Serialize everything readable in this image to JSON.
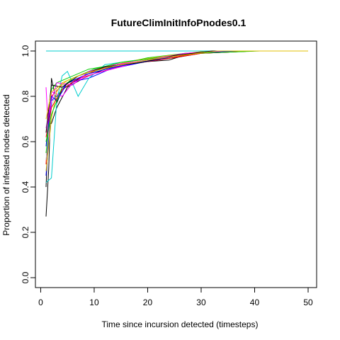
{
  "chart_data": {
    "type": "line",
    "title": "FutureClimInitInfoPnodes0.1",
    "xlabel": "Time since incursion detected (timesteps)",
    "ylabel": "Proportion of infested nodes detected",
    "xlim": [
      0,
      50
    ],
    "ylim": [
      0,
      1
    ],
    "x_ticks": [
      0,
      10,
      20,
      30,
      40,
      50
    ],
    "y_ticks": [
      0.0,
      0.2,
      0.4,
      0.6,
      0.8,
      1.0
    ],
    "y_tick_labels": [
      "0.0",
      "0.2",
      "0.4",
      "0.6",
      "0.8",
      "1.0"
    ],
    "grid": false,
    "legend": "none",
    "series": [
      {
        "color": "#000000",
        "values": [
          [
            1,
            0.27
          ],
          [
            1.5,
            0.48
          ],
          [
            2,
            0.88
          ],
          [
            3,
            0.77
          ],
          [
            4,
            0.83
          ],
          [
            6,
            0.86
          ],
          [
            8,
            0.89
          ],
          [
            10,
            0.91
          ],
          [
            15,
            0.94
          ],
          [
            20,
            0.96
          ],
          [
            25,
            0.97
          ],
          [
            30,
            0.99
          ],
          [
            35,
            0.995
          ],
          [
            40,
            1.0
          ],
          [
            50,
            1.0
          ]
        ]
      },
      {
        "color": "#000000",
        "values": [
          [
            1,
            0.4
          ],
          [
            1.5,
            0.68
          ],
          [
            2,
            0.68
          ],
          [
            3,
            0.75
          ],
          [
            5,
            0.84
          ],
          [
            8,
            0.88
          ],
          [
            12,
            0.92
          ],
          [
            18,
            0.95
          ],
          [
            24,
            0.96
          ],
          [
            28,
            0.99
          ],
          [
            34,
            1.0
          ],
          [
            50,
            1.0
          ]
        ]
      },
      {
        "color": "#ff0000",
        "values": [
          [
            1,
            0.5
          ],
          [
            1.5,
            0.72
          ],
          [
            2,
            0.8
          ],
          [
            4,
            0.85
          ],
          [
            6,
            0.87
          ],
          [
            10,
            0.9
          ],
          [
            16,
            0.94
          ],
          [
            22,
            0.96
          ],
          [
            30,
            0.99
          ],
          [
            40,
            1.0
          ],
          [
            50,
            1.0
          ]
        ]
      },
      {
        "color": "#00cd00",
        "values": [
          [
            1,
            0.55
          ],
          [
            1.5,
            0.66
          ],
          [
            2,
            0.83
          ],
          [
            3,
            0.86
          ],
          [
            5,
            0.88
          ],
          [
            9,
            0.92
          ],
          [
            14,
            0.94
          ],
          [
            20,
            0.97
          ],
          [
            27,
            0.99
          ],
          [
            35,
            1.0
          ],
          [
            50,
            1.0
          ]
        ]
      },
      {
        "color": "#0000ff",
        "values": [
          [
            1,
            0.45
          ],
          [
            2,
            0.78
          ],
          [
            3,
            0.8
          ],
          [
            5,
            0.86
          ],
          [
            9,
            0.88
          ],
          [
            13,
            0.92
          ],
          [
            19,
            0.95
          ],
          [
            26,
            0.98
          ],
          [
            33,
            1.0
          ],
          [
            50,
            1.0
          ]
        ]
      },
      {
        "color": "#00cdcd",
        "values": [
          [
            1,
            0.42
          ],
          [
            2,
            0.44
          ],
          [
            3,
            0.78
          ],
          [
            4,
            0.89
          ],
          [
            5,
            0.91
          ],
          [
            7,
            0.8
          ],
          [
            9,
            0.88
          ],
          [
            12,
            0.94
          ],
          [
            18,
            0.96
          ],
          [
            25,
            0.98
          ],
          [
            32,
            1.0
          ],
          [
            46,
            1.0
          ],
          [
            50,
            1.0
          ]
        ]
      },
      {
        "color": "#ff00ff",
        "values": [
          [
            1,
            0.84
          ],
          [
            1.5,
            0.62
          ],
          [
            2,
            0.82
          ],
          [
            4,
            0.8
          ],
          [
            6,
            0.86
          ],
          [
            10,
            0.9
          ],
          [
            15,
            0.93
          ],
          [
            20,
            0.96
          ],
          [
            28,
            0.99
          ],
          [
            36,
            1.0
          ],
          [
            50,
            1.0
          ]
        ]
      },
      {
        "color": "#e0c000",
        "values": [
          [
            1,
            0.47
          ],
          [
            2,
            0.7
          ],
          [
            3,
            0.82
          ],
          [
            4,
            0.86
          ],
          [
            8,
            0.9
          ],
          [
            12,
            0.93
          ],
          [
            18,
            0.96
          ],
          [
            24,
            0.98
          ],
          [
            31,
            1.0
          ],
          [
            50,
            1.0
          ]
        ]
      },
      {
        "color": "#bebebe",
        "values": [
          [
            1,
            0.52
          ],
          [
            2,
            0.75
          ],
          [
            3,
            0.84
          ],
          [
            6,
            0.87
          ],
          [
            10,
            0.91
          ],
          [
            16,
            0.94
          ],
          [
            22,
            0.97
          ],
          [
            29,
            0.99
          ],
          [
            38,
            1.0
          ],
          [
            50,
            1.0
          ]
        ]
      },
      {
        "color": "#00cdcd",
        "values": [
          [
            1,
            1.0
          ],
          [
            50,
            1.0
          ]
        ]
      },
      {
        "color": "#ff0000",
        "values": [
          [
            1,
            0.62
          ],
          [
            2,
            0.75
          ],
          [
            4,
            0.83
          ],
          [
            7,
            0.88
          ],
          [
            11,
            0.92
          ],
          [
            17,
            0.95
          ],
          [
            23,
            0.97
          ],
          [
            30,
            0.99
          ],
          [
            39,
            1.0
          ],
          [
            50,
            1.0
          ]
        ]
      },
      {
        "color": "#0000ff",
        "values": [
          [
            1,
            0.58
          ],
          [
            2,
            0.8
          ],
          [
            3,
            0.78
          ],
          [
            5,
            0.86
          ],
          [
            9,
            0.9
          ],
          [
            14,
            0.93
          ],
          [
            21,
            0.96
          ],
          [
            28,
            0.99
          ],
          [
            37,
            1.0
          ],
          [
            50,
            1.0
          ]
        ]
      },
      {
        "color": "#00cd00",
        "values": [
          [
            1,
            0.6
          ],
          [
            2,
            0.72
          ],
          [
            4,
            0.84
          ],
          [
            6,
            0.88
          ],
          [
            10,
            0.92
          ],
          [
            15,
            0.95
          ],
          [
            22,
            0.97
          ],
          [
            29,
            0.99
          ],
          [
            41,
            1.0
          ],
          [
            50,
            1.0
          ]
        ]
      },
      {
        "color": "#ff00ff",
        "values": [
          [
            1,
            0.66
          ],
          [
            2,
            0.78
          ],
          [
            3,
            0.86
          ],
          [
            6,
            0.85
          ],
          [
            9,
            0.91
          ],
          [
            14,
            0.94
          ],
          [
            20,
            0.96
          ],
          [
            27,
            0.99
          ],
          [
            34,
            1.0
          ],
          [
            50,
            1.0
          ]
        ]
      },
      {
        "color": "#000000",
        "values": [
          [
            1,
            0.64
          ],
          [
            2,
            0.85
          ],
          [
            4,
            0.84
          ],
          [
            7,
            0.89
          ],
          [
            12,
            0.93
          ],
          [
            19,
            0.95
          ],
          [
            25,
            0.98
          ],
          [
            32,
            1.0
          ],
          [
            50,
            1.0
          ]
        ]
      },
      {
        "color": "#e0c000",
        "values": [
          [
            1,
            0.7
          ],
          [
            2,
            0.82
          ],
          [
            5,
            0.87
          ],
          [
            8,
            0.9
          ],
          [
            13,
            0.93
          ],
          [
            20,
            0.96
          ],
          [
            26,
            0.98
          ],
          [
            33,
            1.0
          ],
          [
            50,
            1.0
          ]
        ]
      }
    ]
  }
}
